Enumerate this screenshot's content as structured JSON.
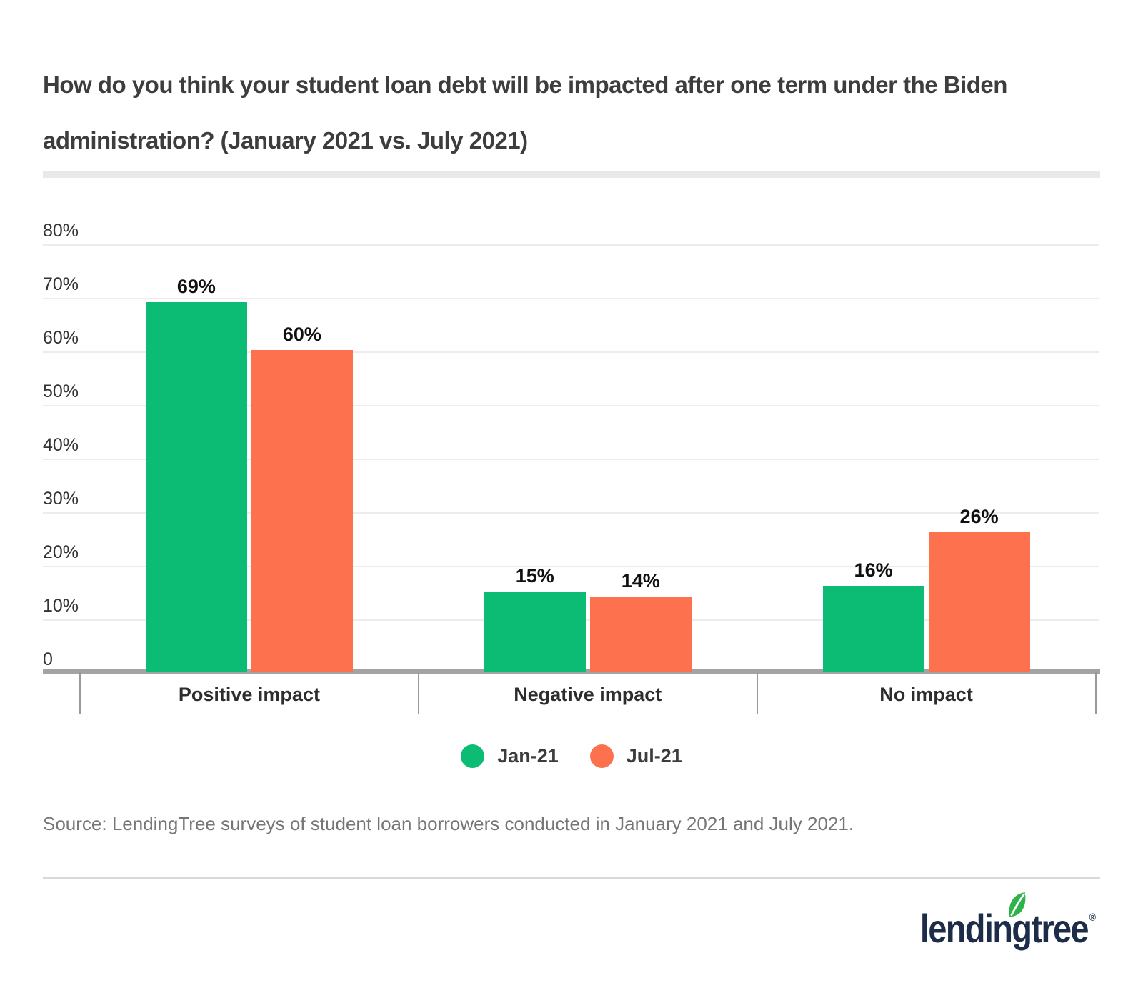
{
  "title": {
    "line1": "How do you think your student loan debt will be impacted after one term under the Biden",
    "line2": "administration? (January 2021 vs. July 2021)"
  },
  "chart_data": {
    "type": "bar",
    "categories": [
      "Positive impact",
      "Negative impact",
      "No impact"
    ],
    "series": [
      {
        "name": "Jan-21",
        "color": "#0cbc74",
        "values": [
          69,
          15,
          16
        ]
      },
      {
        "name": "Jul-21",
        "color": "#fe714e",
        "values": [
          60,
          14,
          26
        ]
      }
    ],
    "value_suffix": "%",
    "ylim": [
      0,
      80
    ],
    "yticks": [
      {
        "value": 0,
        "label": "0"
      },
      {
        "value": 10,
        "label": "10%"
      },
      {
        "value": 20,
        "label": "20%"
      },
      {
        "value": 30,
        "label": "30%"
      },
      {
        "value": 40,
        "label": "40%"
      },
      {
        "value": 50,
        "label": "50%"
      },
      {
        "value": 60,
        "label": "60%"
      },
      {
        "value": 70,
        "label": "70%"
      },
      {
        "value": 80,
        "label": "80%"
      }
    ],
    "grid": true,
    "legend_position": "bottom"
  },
  "source": "Source: LendingTree surveys of student loan borrowers conducted in January 2021 and July 2021.",
  "logo": {
    "text": "lendingtree",
    "reg": "®",
    "navy": "#1d2d49",
    "leaf_green": "#2eb34b"
  }
}
